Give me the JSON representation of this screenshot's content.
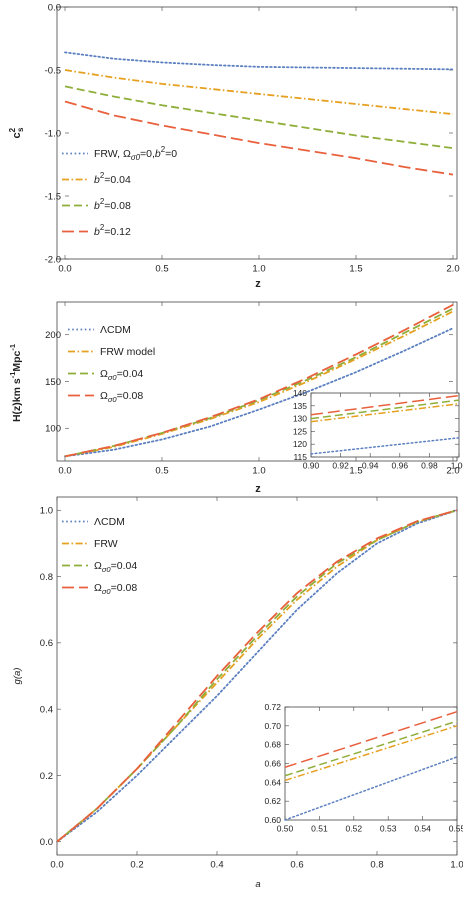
{
  "chart_data": [
    {
      "type": "line",
      "ylabel_main": "c",
      "ylabel_sup": "2",
      "ylabel_sub": "s",
      "xlabel": "z",
      "xlim": [
        0,
        2
      ],
      "ylim": [
        -2,
        0
      ],
      "x_ticks": [
        "0.0",
        "0.5",
        "1.0",
        "1.5",
        "2.0"
      ],
      "y_ticks": [
        "-2.0",
        "-1.5",
        "-1.0",
        "-0.5",
        "0.0"
      ],
      "legend_position": "bottom-left",
      "legend": [
        {
          "text": "FRW, Ω",
          "sub": "σ0",
          "rest": "=0,",
          "italic": "b",
          "sup": "2",
          "tail": "=0"
        },
        {
          "text": "",
          "italic": "b",
          "sup": "2",
          "tail": "=0.04"
        },
        {
          "text": "",
          "italic": "b",
          "sup": "2",
          "tail": "=0.08"
        },
        {
          "text": "",
          "italic": "b",
          "sup": "2",
          "tail": "=0.12"
        }
      ],
      "series": [
        {
          "color": "#5b7fc0",
          "dash": "dot",
          "x": [
            0,
            0.25,
            0.5,
            0.75,
            1.0,
            1.25,
            1.5,
            1.75,
            2.0
          ],
          "y": [
            -0.36,
            -0.41,
            -0.44,
            -0.46,
            -0.475,
            -0.48,
            -0.485,
            -0.49,
            -0.495
          ]
        },
        {
          "color": "#e6a020",
          "dash": "dashdot",
          "x": [
            0,
            0.25,
            0.5,
            0.75,
            1.0,
            1.25,
            1.5,
            1.75,
            2.0
          ],
          "y": [
            -0.5,
            -0.56,
            -0.61,
            -0.65,
            -0.69,
            -0.73,
            -0.77,
            -0.81,
            -0.85
          ]
        },
        {
          "color": "#8fae3a",
          "dash": "dash",
          "x": [
            0,
            0.25,
            0.5,
            0.75,
            1.0,
            1.25,
            1.5,
            1.75,
            2.0
          ],
          "y": [
            -0.63,
            -0.71,
            -0.78,
            -0.84,
            -0.9,
            -0.96,
            -1.02,
            -1.07,
            -1.12
          ]
        },
        {
          "color": "#e8603c",
          "dash": "longdash",
          "x": [
            0,
            0.25,
            0.5,
            0.75,
            1.0,
            1.25,
            1.5,
            1.75,
            2.0
          ],
          "y": [
            -0.75,
            -0.86,
            -0.94,
            -1.01,
            -1.08,
            -1.14,
            -1.2,
            -1.27,
            -1.33
          ]
        }
      ]
    },
    {
      "type": "line",
      "ylabel": "H(z)km s",
      "ylabel_sup1": "-1",
      "ylabel_mid": "Mpc",
      "ylabel_sup2": "-1",
      "xlabel": "z",
      "xlim": [
        0,
        2
      ],
      "ylim": [
        65,
        235
      ],
      "x_ticks": [
        "0.0",
        "0.5",
        "1.0",
        "1.5",
        "2.0"
      ],
      "y_ticks": [
        "100",
        "150",
        "200"
      ],
      "legend_position": "top-left",
      "legend": [
        {
          "text": "ΛCDM",
          "sub": "",
          "rest": ""
        },
        {
          "text": "FRW model",
          "sub": "",
          "rest": ""
        },
        {
          "text": "Ω",
          "sub": "σ0",
          "rest": "=0.04"
        },
        {
          "text": "Ω",
          "sub": "σ0",
          "rest": "=0.08"
        }
      ],
      "series": [
        {
          "color": "#5b7fc0",
          "dash": "dot",
          "x": [
            0,
            0.25,
            0.5,
            0.75,
            1.0,
            1.25,
            1.5,
            1.75,
            2.0
          ],
          "y": [
            70,
            77,
            88,
            102,
            120,
            139,
            160,
            183,
            207
          ]
        },
        {
          "color": "#e6a020",
          "dash": "dashdot",
          "x": [
            0,
            0.25,
            0.5,
            0.75,
            1.0,
            1.25,
            1.5,
            1.75,
            2.0
          ],
          "y": [
            70,
            80,
            94,
            110,
            128,
            150,
            174,
            199,
            225
          ]
        },
        {
          "color": "#8fae3a",
          "dash": "dash",
          "x": [
            0,
            0.25,
            0.5,
            0.75,
            1.0,
            1.25,
            1.5,
            1.75,
            2.0
          ],
          "y": [
            70,
            81,
            95,
            111,
            130,
            152,
            176,
            202,
            228
          ]
        },
        {
          "color": "#e8603c",
          "dash": "longdash",
          "x": [
            0,
            0.25,
            0.5,
            0.75,
            1.0,
            1.25,
            1.5,
            1.75,
            2.0
          ],
          "y": [
            70,
            81,
            95,
            112,
            131,
            154,
            179,
            205,
            232
          ]
        }
      ],
      "inset": {
        "xlim": [
          0.9,
          1.0
        ],
        "ylim": [
          115,
          140
        ],
        "x_ticks": [
          "0.90",
          "0.92",
          "0.94",
          "0.96",
          "0.98",
          "1.00"
        ],
        "y_ticks": [
          "115",
          "120",
          "125",
          "130",
          "135",
          "140"
        ],
        "series": [
          {
            "color": "#5b7fc0",
            "dash": "dot",
            "x": [
              0.9,
              1.0
            ],
            "y": [
              116.2,
              122.5
            ]
          },
          {
            "color": "#e6a020",
            "dash": "dashdot",
            "x": [
              0.9,
              1.0
            ],
            "y": [
              128.8,
              135.8
            ]
          },
          {
            "color": "#8fae3a",
            "dash": "dash",
            "x": [
              0.9,
              1.0
            ],
            "y": [
              130.0,
              137.2
            ]
          },
          {
            "color": "#e8603c",
            "dash": "longdash",
            "x": [
              0.9,
              1.0
            ],
            "y": [
              131.5,
              139.0
            ]
          }
        ]
      }
    },
    {
      "type": "line",
      "ylabel": "g(a)",
      "xlabel": "a",
      "xlim": [
        0,
        1
      ],
      "ylim": [
        -0.04,
        1.04
      ],
      "x_ticks": [
        "0.0",
        "0.2",
        "0.4",
        "0.6",
        "0.8",
        "1.0"
      ],
      "y_ticks": [
        "0.0",
        "0.2",
        "0.4",
        "0.6",
        "0.8",
        "1.0"
      ],
      "legend_position": "top-left",
      "legend": [
        {
          "text": "ΛCDM",
          "sub": "",
          "rest": ""
        },
        {
          "text": "FRW",
          "sub": "",
          "rest": ""
        },
        {
          "text": "Ω",
          "sub": "σ0",
          "rest": "=0.04"
        },
        {
          "text": "Ω",
          "sub": "σ0",
          "rest": "=0.08"
        }
      ],
      "series": [
        {
          "color": "#5b7fc0",
          "dash": "dot",
          "x": [
            0,
            0.1,
            0.2,
            0.3,
            0.4,
            0.5,
            0.6,
            0.7,
            0.8,
            0.9,
            1.0
          ],
          "y": [
            0,
            0.09,
            0.2,
            0.32,
            0.44,
            0.57,
            0.7,
            0.81,
            0.9,
            0.96,
            1.0
          ]
        },
        {
          "color": "#e6a020",
          "dash": "dashdot",
          "x": [
            0,
            0.1,
            0.2,
            0.3,
            0.4,
            0.5,
            0.6,
            0.7,
            0.8,
            0.9,
            1.0
          ],
          "y": [
            0,
            0.1,
            0.22,
            0.35,
            0.48,
            0.61,
            0.73,
            0.83,
            0.91,
            0.965,
            1.0
          ]
        },
        {
          "color": "#8fae3a",
          "dash": "dash",
          "x": [
            0,
            0.1,
            0.2,
            0.3,
            0.4,
            0.5,
            0.6,
            0.7,
            0.8,
            0.9,
            1.0
          ],
          "y": [
            0,
            0.1,
            0.22,
            0.35,
            0.49,
            0.62,
            0.74,
            0.84,
            0.91,
            0.965,
            1.0
          ]
        },
        {
          "color": "#e8603c",
          "dash": "longdash",
          "x": [
            0,
            0.1,
            0.2,
            0.3,
            0.4,
            0.5,
            0.6,
            0.7,
            0.8,
            0.9,
            1.0
          ],
          "y": [
            0,
            0.1,
            0.22,
            0.36,
            0.5,
            0.63,
            0.75,
            0.845,
            0.915,
            0.967,
            1.0
          ]
        }
      ],
      "inset": {
        "xlim": [
          0.5,
          0.55
        ],
        "ylim": [
          0.6,
          0.72
        ],
        "x_ticks": [
          "0.50",
          "0.51",
          "0.52",
          "0.53",
          "0.54",
          "0.55"
        ],
        "y_ticks": [
          "0.60",
          "0.62",
          "0.64",
          "0.66",
          "0.68",
          "0.70",
          "0.72"
        ],
        "series": [
          {
            "color": "#5b7fc0",
            "dash": "dot",
            "x": [
              0.5,
              0.55
            ],
            "y": [
              0.6,
              0.667
            ]
          },
          {
            "color": "#e6a020",
            "dash": "dashdot",
            "x": [
              0.5,
              0.55
            ],
            "y": [
              0.642,
              0.7
            ]
          },
          {
            "color": "#8fae3a",
            "dash": "dash",
            "x": [
              0.5,
              0.55
            ],
            "y": [
              0.647,
              0.705
            ]
          },
          {
            "color": "#e8603c",
            "dash": "longdash",
            "x": [
              0.5,
              0.55
            ],
            "y": [
              0.656,
              0.715
            ]
          }
        ]
      }
    }
  ]
}
